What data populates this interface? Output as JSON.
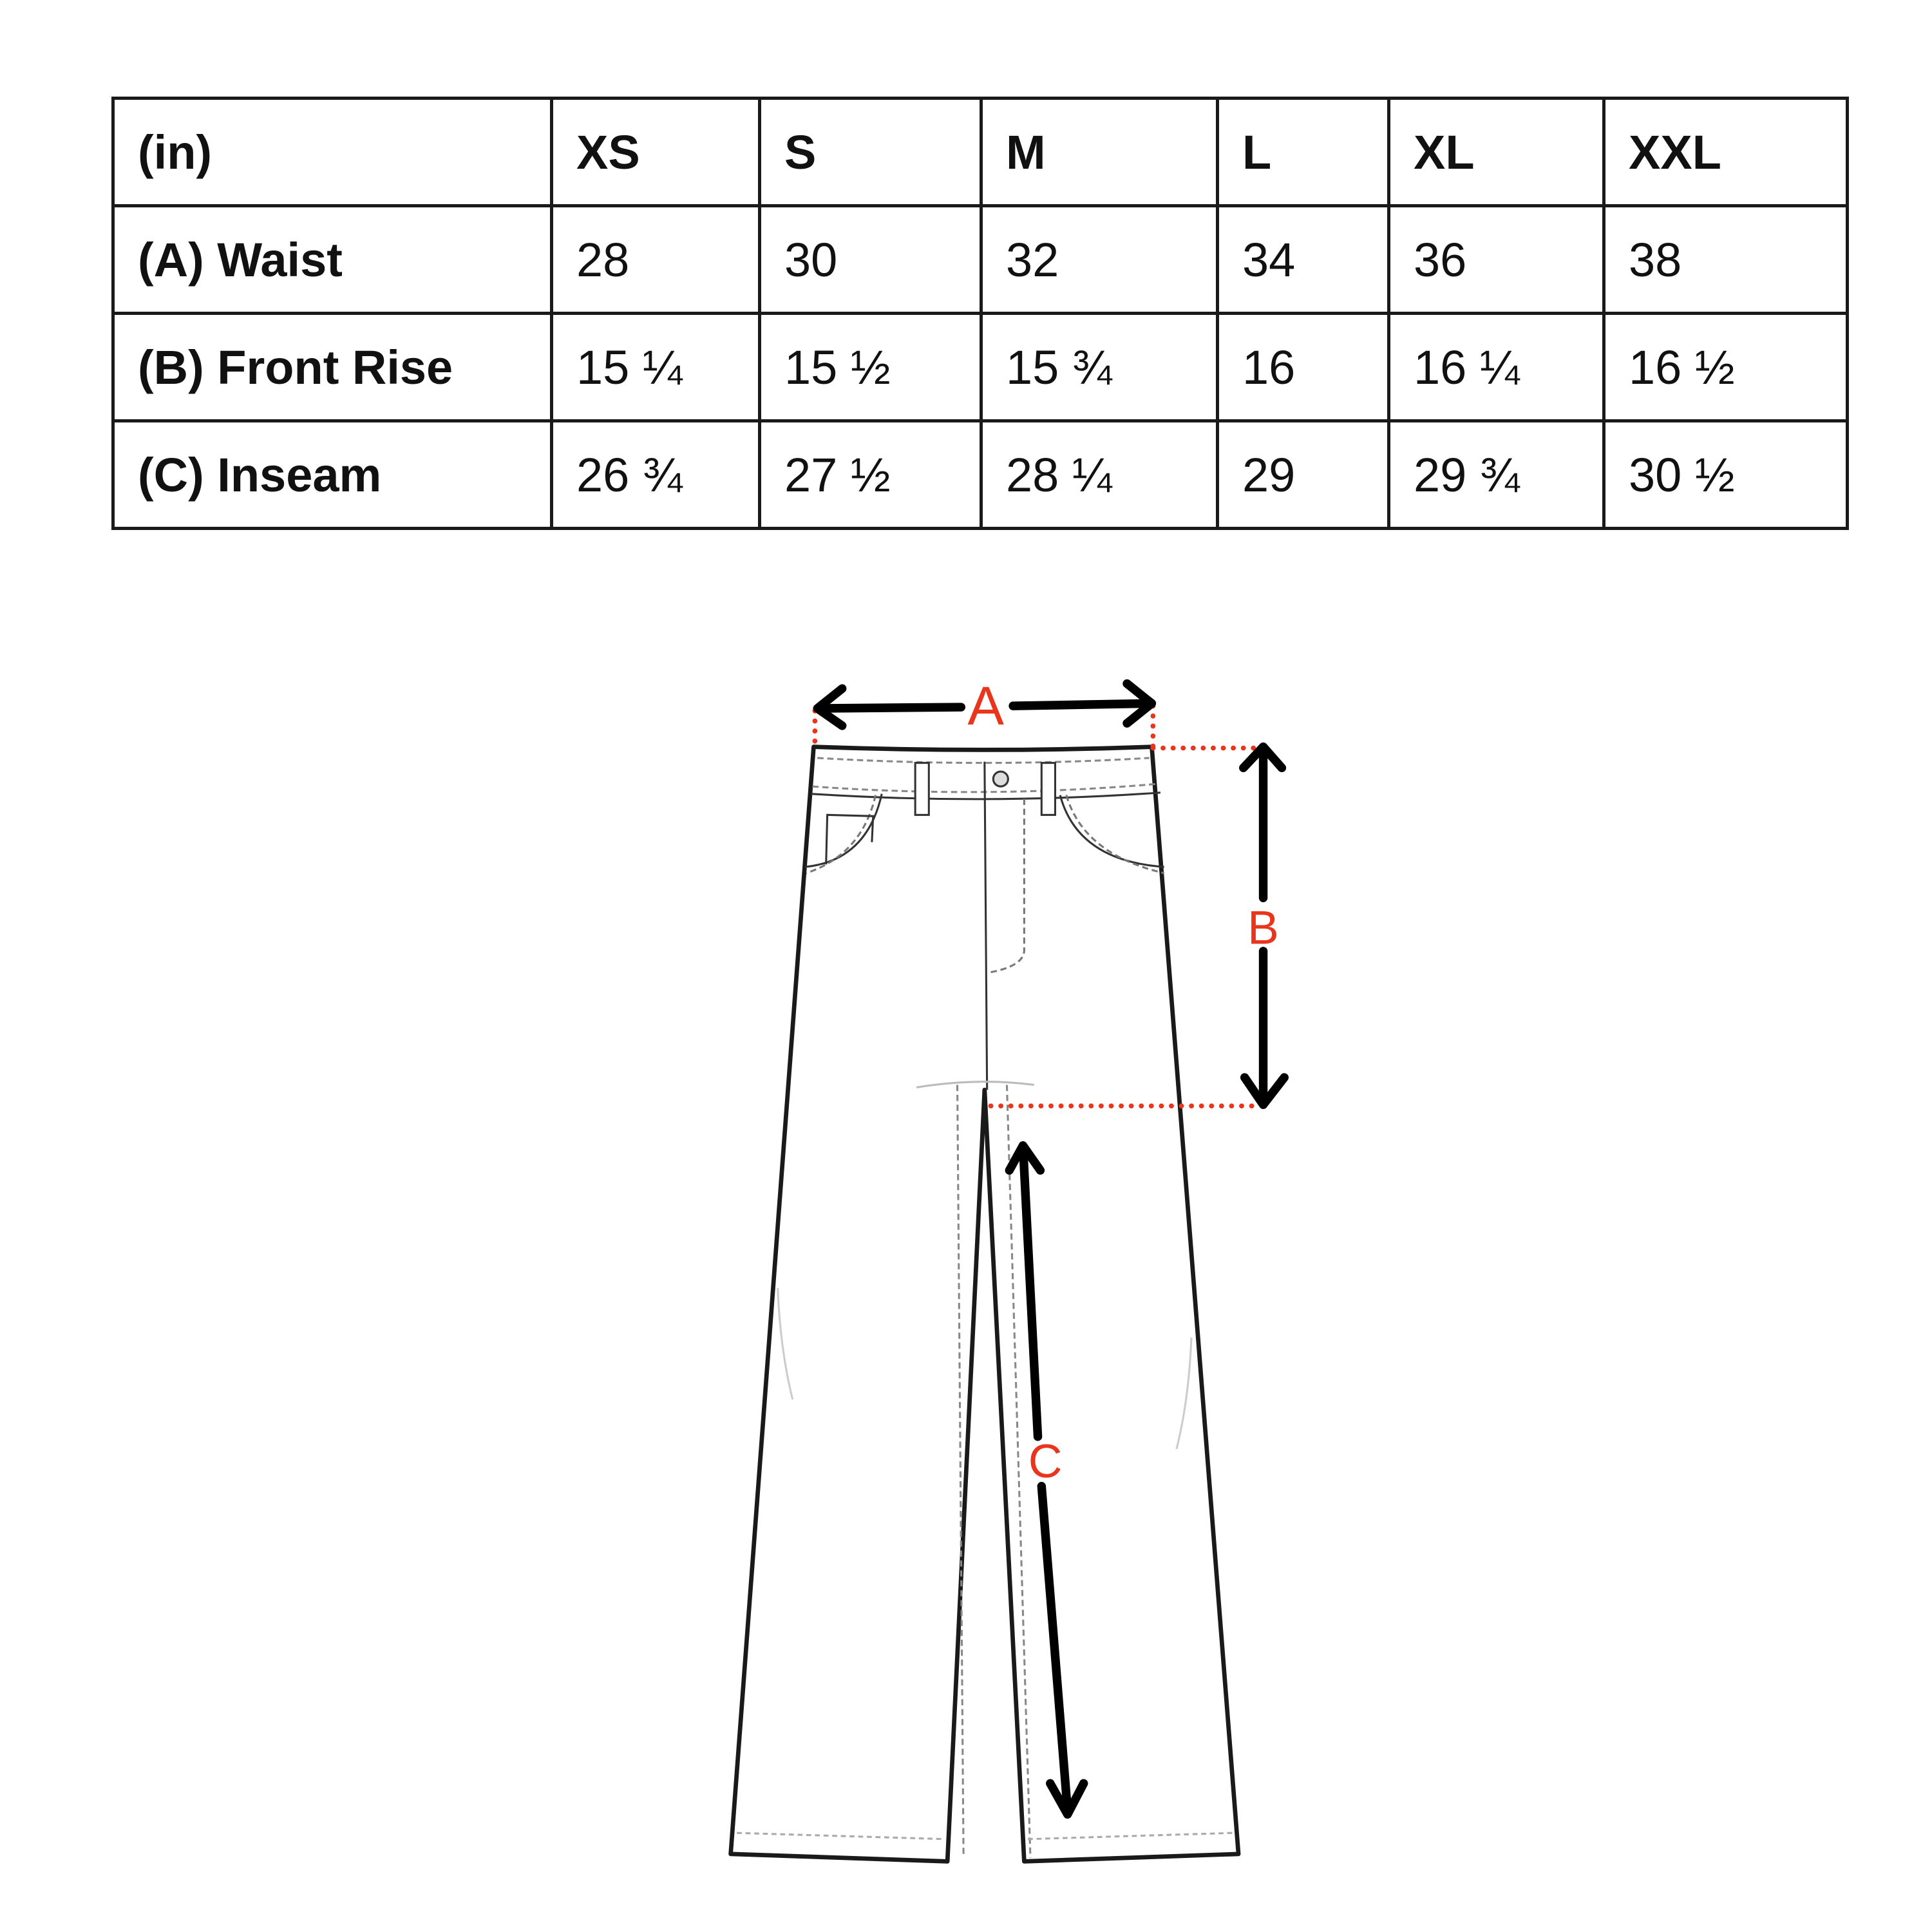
{
  "size_chart": {
    "unit_label": "(in)",
    "sizes": [
      "XS",
      "S",
      "M",
      "L",
      "XL",
      "XXL"
    ],
    "rows": [
      {
        "label": "(A) Waist",
        "values": [
          "28",
          "30",
          "32",
          "34",
          "36",
          "38"
        ]
      },
      {
        "label": "(B) Front Rise",
        "values": [
          "15 ¼",
          "15 ½",
          "15 ¾",
          "16",
          "16 ¼",
          "16 ½"
        ]
      },
      {
        "label": "(C) Inseam",
        "values": [
          "26 ¾",
          "27 ½",
          "28 ¼",
          "29",
          "29 ¾",
          "30 ½"
        ]
      }
    ]
  },
  "diagram": {
    "label_a": "A",
    "label_b": "B",
    "label_c": "C",
    "accent_color": "#e8351c"
  }
}
